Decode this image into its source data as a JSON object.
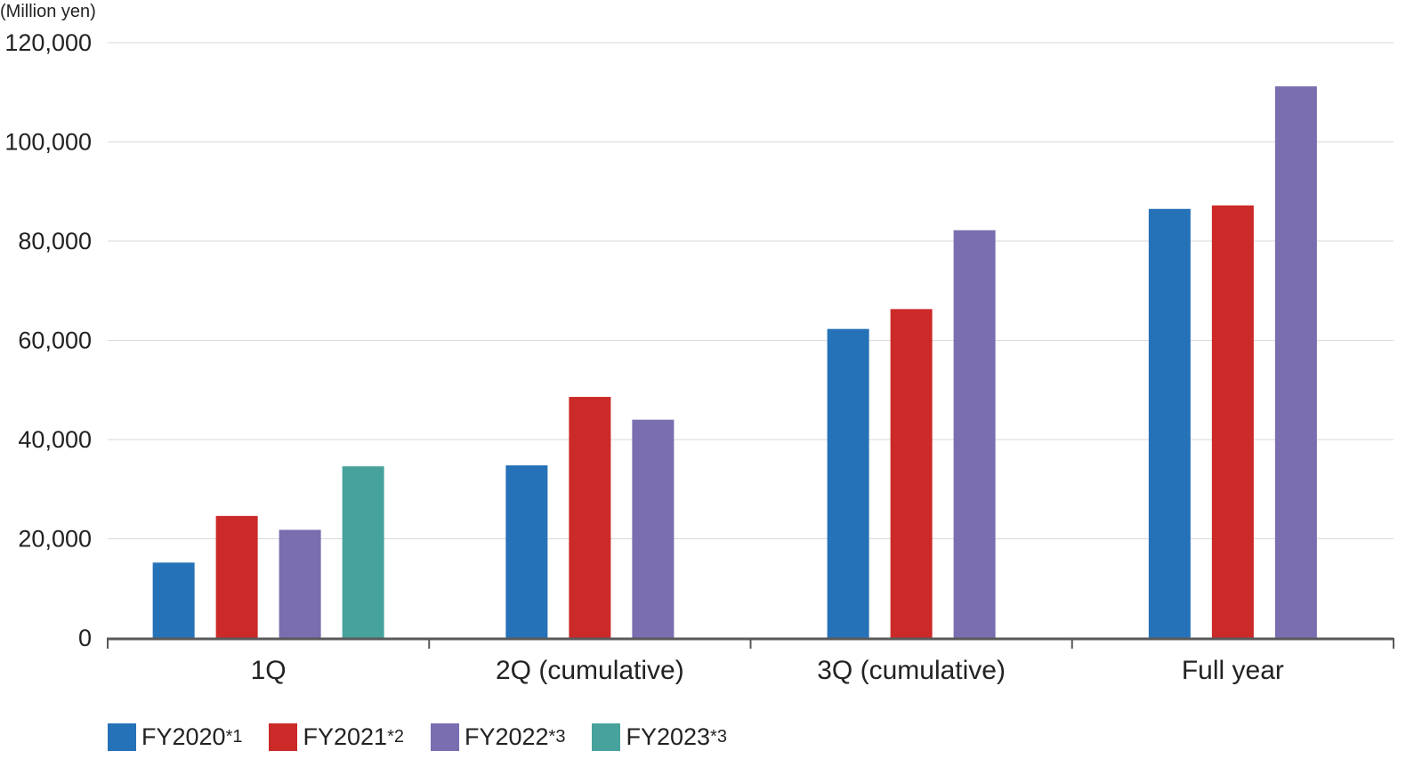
{
  "chart_data": {
    "type": "bar",
    "unit_label": "(Million yen)",
    "categories": [
      "1Q",
      "2Q (cumulative)",
      "3Q (cumulative)",
      "Full year"
    ],
    "series": [
      {
        "name": "FY2020",
        "note": "*1",
        "color": "#2672b8",
        "values": [
          15200,
          34800,
          62300,
          86500
        ]
      },
      {
        "name": "FY2021",
        "note": "*2",
        "color": "#cc2929",
        "values": [
          24600,
          48600,
          66300,
          87200
        ]
      },
      {
        "name": "FY2022",
        "note": "*3",
        "color": "#7a6db0",
        "values": [
          21800,
          44000,
          82200,
          111200
        ]
      },
      {
        "name": "FY2023",
        "note": "*3",
        "color": "#47a29c",
        "values": [
          34600,
          null,
          null,
          null
        ]
      }
    ],
    "ylim": [
      0,
      120000
    ],
    "yticks": [
      0,
      20000,
      40000,
      60000,
      80000,
      100000,
      120000
    ],
    "ytick_labels": [
      "0",
      "20,000",
      "40,000",
      "60,000",
      "80,000",
      "100,000",
      "120,000"
    ],
    "grid": true,
    "legend_position": "bottom-left"
  }
}
